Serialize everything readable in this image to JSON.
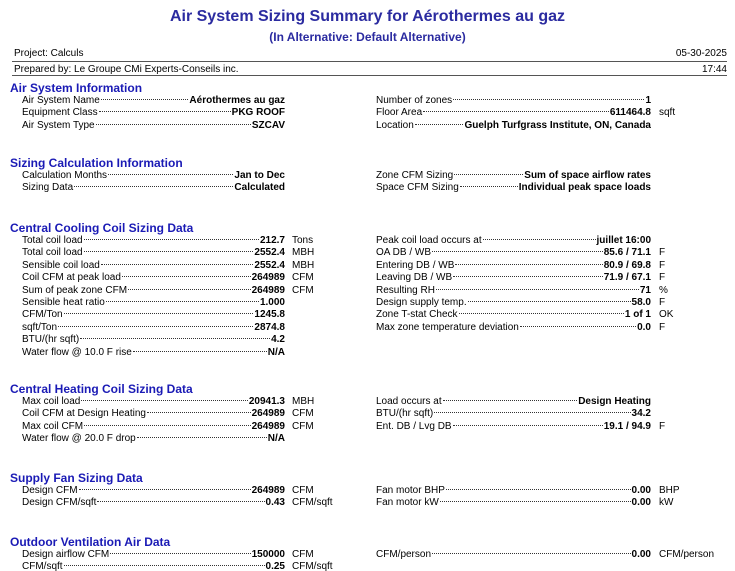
{
  "header": {
    "title": "Air System Sizing Summary for Aérothermes au gaz",
    "subtitle": "(In Alternative: Default Alternative)",
    "project": "Project: Calculs",
    "date": "05-30-2025",
    "prepared_by": "Prepared by: Le Groupe CMi Experts-Conseils inc.",
    "time": "17:44"
  },
  "sections": [
    {
      "title": "Air System Information",
      "left": [
        {
          "label": "Air System Name",
          "value": "Aérothermes au gaz"
        },
        {
          "label": "Equipment Class",
          "value": "PKG ROOF"
        },
        {
          "label": "Air System Type",
          "value": "SZCAV"
        }
      ],
      "right": [
        {
          "label": "Number of zones",
          "value": "1"
        },
        {
          "label": "Floor Area",
          "value": "611464.8",
          "unit": "sqft"
        },
        {
          "label": "Location",
          "value": "Guelph Turfgrass Institute, ON, Canada"
        }
      ]
    },
    {
      "title": "Sizing Calculation Information",
      "left": [
        {
          "label": "Calculation Months",
          "value": "Jan to Dec"
        },
        {
          "label": "Sizing Data",
          "value": "Calculated"
        }
      ],
      "right": [
        {
          "label": "Zone CFM Sizing",
          "value": "Sum of space airflow rates"
        },
        {
          "label": "Space CFM Sizing",
          "value": "Individual peak space loads"
        }
      ]
    },
    {
      "title": "Central Cooling Coil Sizing Data",
      "left": [
        {
          "label": "Total coil load",
          "value": "212.7",
          "unit": "Tons"
        },
        {
          "label": "Total coil load",
          "value": "2552.4",
          "unit": "MBH"
        },
        {
          "label": "Sensible coil load",
          "value": "2552.4",
          "unit": "MBH"
        },
        {
          "label": "Coil CFM at peak load",
          "value": "264989",
          "unit": "CFM"
        },
        {
          "label": "Sum of peak zone CFM",
          "value": "264989",
          "unit": "CFM"
        },
        {
          "label": "Sensible heat ratio",
          "value": "1.000"
        },
        {
          "label": "CFM/Ton",
          "value": "1245.8"
        },
        {
          "label": "sqft/Ton",
          "value": "2874.8"
        },
        {
          "label": "BTU/(hr sqft)",
          "value": "4.2"
        },
        {
          "label": "Water flow @ 10.0 F rise",
          "value": "N/A"
        }
      ],
      "right": [
        {
          "label": "Peak coil load occurs at",
          "value": "juillet 16:00"
        },
        {
          "label": "OA DB / WB",
          "value": "85.6 / 71.1",
          "unit": "F"
        },
        {
          "label": "Entering DB / WB",
          "value": "80.9 / 69.8",
          "unit": "F"
        },
        {
          "label": "Leaving DB / WB",
          "value": "71.9 / 67.1",
          "unit": "F"
        },
        {
          "label": "Resulting RH",
          "value": "71",
          "unit": "%"
        },
        {
          "label": "Design supply temp.",
          "value": "58.0",
          "unit": "F"
        },
        {
          "label": "Zone T-stat Check",
          "value": "1 of 1",
          "unit": "OK"
        },
        {
          "label": "Max zone temperature deviation",
          "value": "0.0",
          "unit": "F"
        }
      ]
    },
    {
      "title": "Central Heating Coil Sizing Data",
      "left": [
        {
          "label": "Max coil load",
          "value": "20941.3",
          "unit": "MBH"
        },
        {
          "label": "Coil CFM at Design Heating",
          "value": "264989",
          "unit": "CFM"
        },
        {
          "label": "Max coil CFM",
          "value": "264989",
          "unit": "CFM"
        },
        {
          "label": "Water flow @ 20.0 F drop",
          "value": "N/A"
        }
      ],
      "right": [
        {
          "label": "Load occurs at",
          "value": "Design Heating"
        },
        {
          "label": "BTU/(hr sqft)",
          "value": "34.2"
        },
        {
          "label": "Ent. DB / Lvg DB",
          "value": "19.1 / 94.9",
          "unit": "F"
        }
      ]
    },
    {
      "title": "Supply Fan Sizing Data",
      "left": [
        {
          "label": "Design CFM",
          "value": "264989",
          "unit": "CFM"
        },
        {
          "label": "Design CFM/sqft",
          "value": "0.43",
          "unit": "CFM/sqft"
        }
      ],
      "right": [
        {
          "label": "Fan motor BHP",
          "value": "0.00",
          "unit": "BHP"
        },
        {
          "label": "Fan motor kW",
          "value": "0.00",
          "unit": "kW"
        }
      ]
    },
    {
      "title": "Outdoor Ventilation Air Data",
      "left": [
        {
          "label": "Design airflow CFM",
          "value": "150000",
          "unit": "CFM"
        },
        {
          "label": "CFM/sqft",
          "value": "0.25",
          "unit": "CFM/sqft"
        }
      ],
      "right": [
        {
          "label": "CFM/person",
          "value": "0.00",
          "unit": "CFM/person"
        }
      ]
    }
  ]
}
